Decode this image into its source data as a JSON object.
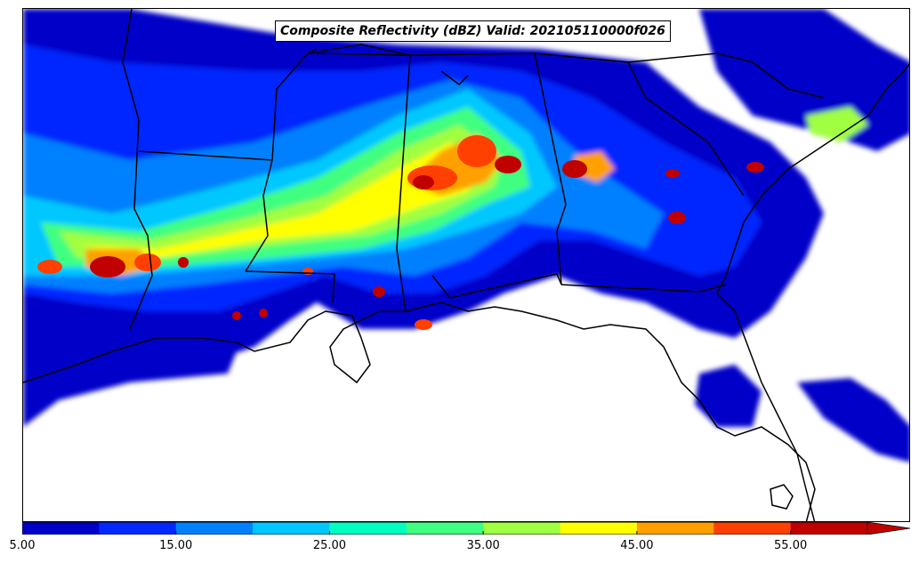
{
  "map": {
    "title": "Composite Reflectivity (dBZ) Valid: 202105110000f026",
    "quantity": "Composite Reflectivity",
    "units": "dBZ",
    "valid_code": "202105110000f026",
    "region": "Southeastern United States and northern Gulf of Mexico",
    "background_color": "#ffffff",
    "boundary_color": "#000000"
  },
  "colorbar": {
    "tick_labels": [
      "5.00",
      "15.00",
      "25.00",
      "35.00",
      "45.00",
      "55.00"
    ],
    "levels": [
      5,
      10,
      15,
      20,
      25,
      30,
      35,
      40,
      45,
      50,
      55
    ],
    "colors": [
      "#0000c8",
      "#0028ff",
      "#0080ff",
      "#00c8ff",
      "#00ffc0",
      "#40ff80",
      "#a0ff40",
      "#ffff00",
      "#ffa000",
      "#ff4000",
      "#c00000"
    ],
    "extend": "max",
    "colormap": "jet"
  }
}
